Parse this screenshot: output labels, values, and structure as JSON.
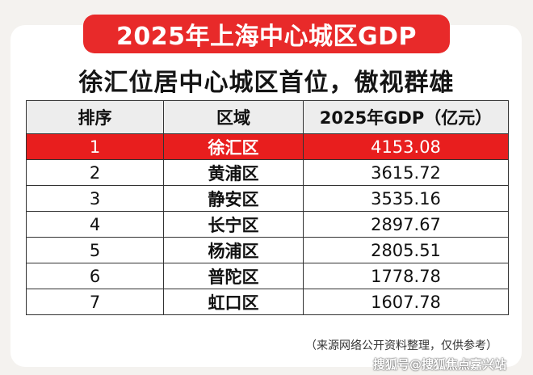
{
  "banner": {
    "title": "2025年上海中心城区GDP"
  },
  "subtitle": "徐汇位居中心城区首位，傲视群雄",
  "table": {
    "headers": [
      "排序",
      "区域",
      "2025年GDP（亿元）"
    ],
    "rows": [
      {
        "rank": "1",
        "district": "徐汇区",
        "gdp": "4153.08",
        "highlight": true
      },
      {
        "rank": "2",
        "district": "黄浦区",
        "gdp": "3615.72"
      },
      {
        "rank": "3",
        "district": "静安区",
        "gdp": "3535.16"
      },
      {
        "rank": "4",
        "district": "长宁区",
        "gdp": "2897.67"
      },
      {
        "rank": "5",
        "district": "杨浦区",
        "gdp": "2805.51"
      },
      {
        "rank": "6",
        "district": "普陀区",
        "gdp": "1778.78"
      },
      {
        "rank": "7",
        "district": "虹口区",
        "gdp": "1607.78"
      }
    ]
  },
  "note": "（来源网络公开资料整理，仅供参考）",
  "watermark": "搜狐号@搜狐焦点嘉兴站",
  "colors": {
    "accent": "#e82a2a",
    "highlight_row": "#e81e1e",
    "header_bg": "#ededed"
  }
}
